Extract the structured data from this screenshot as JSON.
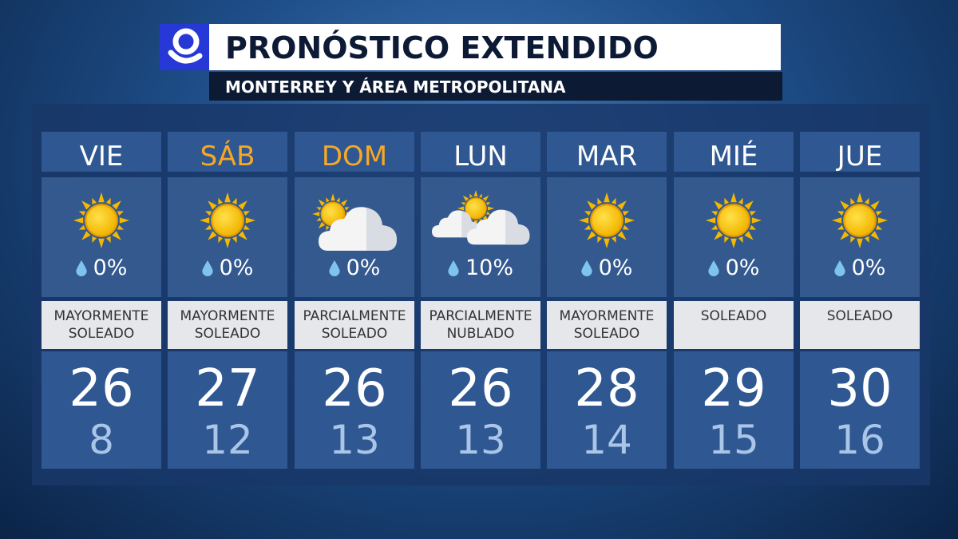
{
  "header": {
    "title": "PRONÓSTICO EXTENDIDO",
    "subtitle": "MONTERREY Y ÁREA METROPOLITANA"
  },
  "days": [
    {
      "day": "VIE",
      "precip": "0%",
      "condition": "MAYORMENTE SOLEADO",
      "high": 26,
      "low": 8
    },
    {
      "day": "SÁB",
      "precip": "0%",
      "condition": "MAYORMENTE SOLEADO",
      "high": 27,
      "low": 12
    },
    {
      "day": "DOM",
      "precip": "0%",
      "condition": "PARCIALMENTE SOLEADO",
      "high": 26,
      "low": 13
    },
    {
      "day": "LUN",
      "precip": "10%",
      "condition": "PARCIALMENTE NUBLADO",
      "high": 26,
      "low": 13
    },
    {
      "day": "MAR",
      "precip": "0%",
      "condition": "MAYORMENTE SOLEADO",
      "high": 28,
      "low": 14
    },
    {
      "day": "MIÉ",
      "precip": "0%",
      "condition": "SOLEADO",
      "high": 29,
      "low": 15
    },
    {
      "day": "JUE",
      "precip": "0%",
      "condition": "SOLEADO",
      "high": 30,
      "low": 16
    }
  ]
}
